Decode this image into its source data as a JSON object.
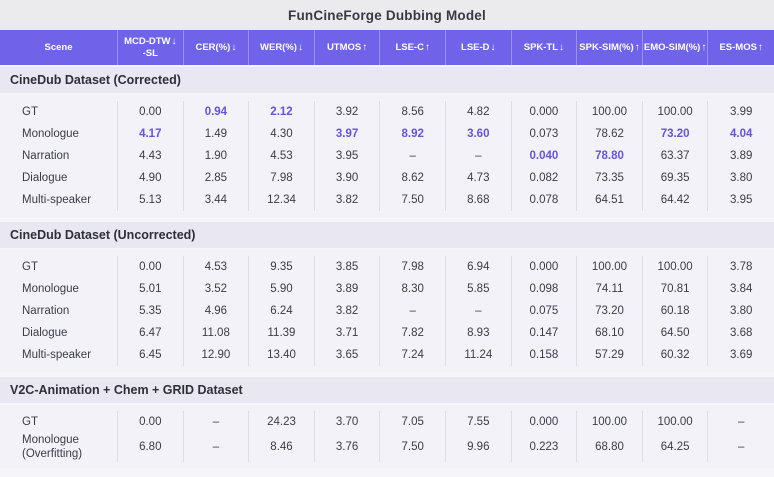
{
  "title": "FunCineForge Dubbing Model",
  "colors": {
    "header_bg": "#6f63e9",
    "highlight_accent": "#6453dd",
    "section_band_bg": "#e9e7f0",
    "data_block_bg": "#f3f2f9",
    "title_band_bg": "#ebebee"
  },
  "chart_data": {
    "type": "table",
    "title": "FunCineForge Dubbing Model",
    "columns": [
      {
        "label": "Scene",
        "arrow": ""
      },
      {
        "label": "MCD-DTW",
        "label2": "-SL",
        "arrow": "down"
      },
      {
        "label": "CER(%)",
        "arrow": "down"
      },
      {
        "label": "WER(%)",
        "arrow": "down"
      },
      {
        "label": "UTMOS",
        "arrow": "up"
      },
      {
        "label": "LSE-C",
        "arrow": "up"
      },
      {
        "label": "LSE-D",
        "arrow": "down"
      },
      {
        "label": "SPK-TL",
        "arrow": "down"
      },
      {
        "label": "SPK-SIM(%)",
        "arrow": "up"
      },
      {
        "label": "EMO-SIM(%)",
        "arrow": "up"
      },
      {
        "label": "ES-MOS",
        "arrow": "up"
      }
    ],
    "sections": [
      {
        "heading": "CineDub Dataset (Corrected)",
        "rows": [
          {
            "scene": "GT",
            "values": [
              "0.00",
              "0.94",
              "2.12",
              "3.92",
              "8.56",
              "4.82",
              "0.000",
              "100.00",
              "100.00",
              "3.99"
            ],
            "highlight": [
              1,
              2
            ]
          },
          {
            "scene": "Monologue",
            "values": [
              "4.17",
              "1.49",
              "4.30",
              "3.97",
              "8.92",
              "3.60",
              "0.073",
              "78.62",
              "73.20",
              "4.04"
            ],
            "highlight": [
              0,
              3,
              4,
              5,
              8,
              9
            ]
          },
          {
            "scene": "Narration",
            "values": [
              "4.43",
              "1.90",
              "4.53",
              "3.95",
              "–",
              "–",
              "0.040",
              "78.80",
              "63.37",
              "3.89"
            ],
            "highlight": [
              6,
              7
            ]
          },
          {
            "scene": "Dialogue",
            "values": [
              "4.90",
              "2.85",
              "7.98",
              "3.90",
              "8.62",
              "4.73",
              "0.082",
              "73.35",
              "69.35",
              "3.80"
            ],
            "highlight": []
          },
          {
            "scene": "Multi-speaker",
            "values": [
              "5.13",
              "3.44",
              "12.34",
              "3.82",
              "7.50",
              "8.68",
              "0.078",
              "64.51",
              "64.42",
              "3.95"
            ],
            "highlight": []
          }
        ]
      },
      {
        "heading": "CineDub Dataset (Uncorrected)",
        "rows": [
          {
            "scene": "GT",
            "values": [
              "0.00",
              "4.53",
              "9.35",
              "3.85",
              "7.98",
              "6.94",
              "0.000",
              "100.00",
              "100.00",
              "3.78"
            ],
            "highlight": []
          },
          {
            "scene": "Monologue",
            "values": [
              "5.01",
              "3.52",
              "5.90",
              "3.89",
              "8.30",
              "5.85",
              "0.098",
              "74.11",
              "70.81",
              "3.84"
            ],
            "highlight": []
          },
          {
            "scene": "Narration",
            "values": [
              "5.35",
              "4.96",
              "6.24",
              "3.82",
              "–",
              "–",
              "0.075",
              "73.20",
              "60.18",
              "3.80"
            ],
            "highlight": []
          },
          {
            "scene": "Dialogue",
            "values": [
              "6.47",
              "11.08",
              "11.39",
              "3.71",
              "7.82",
              "8.93",
              "0.147",
              "68.10",
              "64.50",
              "3.68"
            ],
            "highlight": []
          },
          {
            "scene": "Multi-speaker",
            "values": [
              "6.45",
              "12.90",
              "13.40",
              "3.65",
              "7.24",
              "11.24",
              "0.158",
              "57.29",
              "60.32",
              "3.69"
            ],
            "highlight": []
          }
        ]
      },
      {
        "heading": "V2C-Animation + Chem + GRID Dataset",
        "rows": [
          {
            "scene": "GT",
            "values": [
              "0.00",
              "–",
              "24.23",
              "3.70",
              "7.05",
              "7.55",
              "0.000",
              "100.00",
              "100.00",
              "–"
            ],
            "highlight": []
          },
          {
            "scene": "Monologue",
            "scene_line2": "(Overfitting)",
            "values": [
              "6.80",
              "–",
              "8.46",
              "3.76",
              "7.50",
              "9.96",
              "0.223",
              "68.80",
              "64.25",
              "–"
            ],
            "highlight": []
          }
        ]
      }
    ]
  }
}
